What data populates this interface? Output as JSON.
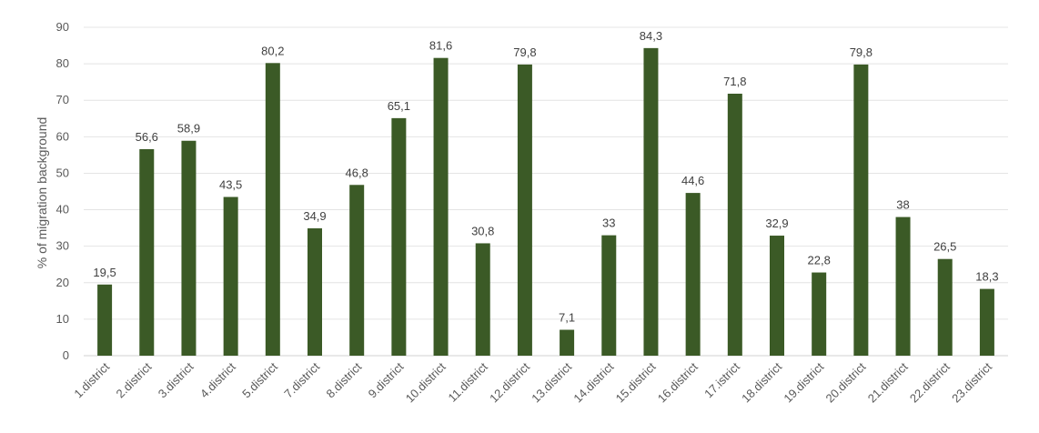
{
  "chart_data": {
    "type": "bar",
    "ylabel": "% of migration background",
    "ylim": [
      0,
      90
    ],
    "ytick_step": 10,
    "grid": true,
    "bar_color": "#3b5a26",
    "categories": [
      "1.district",
      "2.district",
      "3.district",
      "4.district",
      "5.district",
      "7.district",
      "8.district",
      "9.district",
      "10.district",
      "11.district",
      "12.district",
      "13.district",
      "14.district",
      "15.district",
      "16.district",
      "17.istrict",
      "18.district",
      "19.district",
      "20.district",
      "21.district",
      "22.district",
      "23.district"
    ],
    "values": [
      19.5,
      56.6,
      58.9,
      43.5,
      80.2,
      34.9,
      46.8,
      65.1,
      81.6,
      30.8,
      79.8,
      7.1,
      33,
      84.3,
      44.6,
      71.8,
      32.9,
      22.8,
      79.8,
      38,
      26.5,
      18.3
    ],
    "value_labels": [
      "19,5",
      "56,6",
      "58,9",
      "43,5",
      "80,2",
      "34,9",
      "46,8",
      "65,1",
      "81,6",
      "30,8",
      "79,8",
      "7,1",
      "33",
      "84,3",
      "44,6",
      "71,8",
      "32,9",
      "22,8",
      "79,8",
      "38",
      "26,5",
      "18,3"
    ]
  }
}
